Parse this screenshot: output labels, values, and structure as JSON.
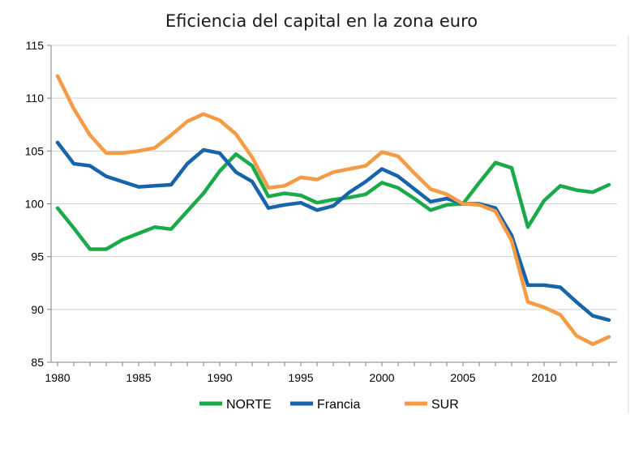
{
  "chart_data": {
    "type": "line",
    "title": "Eficiencia del capital en la zona euro",
    "xlabel": "",
    "ylabel": "",
    "xlim": [
      1980,
      2014
    ],
    "ylim": [
      85,
      115
    ],
    "x_ticks": [
      "1980",
      "1985",
      "1990",
      "1995",
      "2000",
      "2005",
      "2010"
    ],
    "y_ticks": [
      "85",
      "90",
      "95",
      "100",
      "105",
      "110",
      "115"
    ],
    "grid": "horizontal",
    "legend_position": "bottom",
    "x": [
      1980,
      1981,
      1982,
      1983,
      1984,
      1985,
      1986,
      1987,
      1988,
      1989,
      1990,
      1991,
      1992,
      1993,
      1994,
      1995,
      1996,
      1997,
      1998,
      1999,
      2000,
      2001,
      2002,
      2003,
      2004,
      2005,
      2006,
      2007,
      2008,
      2009,
      2010,
      2011,
      2012,
      2013,
      2014
    ],
    "series": [
      {
        "name": "NORTE",
        "color": "#1aaa4a",
        "values": [
          99.6,
          97.7,
          95.7,
          95.7,
          96.6,
          97.2,
          97.8,
          97.6,
          99.3,
          101.0,
          103.1,
          104.7,
          103.6,
          100.7,
          101.0,
          100.8,
          100.1,
          100.4,
          100.6,
          100.9,
          102.0,
          101.5,
          100.5,
          99.4,
          99.9,
          100.0,
          102.0,
          103.9,
          103.4,
          97.8,
          100.3,
          101.7,
          101.3,
          101.1,
          101.8
        ]
      },
      {
        "name": "Francia",
        "color": "#1764ab",
        "values": [
          105.8,
          103.8,
          103.6,
          102.6,
          102.1,
          101.6,
          101.7,
          101.8,
          103.8,
          105.1,
          104.8,
          103.0,
          102.1,
          99.6,
          99.9,
          100.1,
          99.4,
          99.8,
          101.1,
          102.1,
          103.3,
          102.6,
          101.4,
          100.2,
          100.5,
          100.0,
          100.0,
          99.6,
          97.0,
          92.3,
          92.3,
          92.1,
          90.7,
          89.4,
          89.0
        ]
      },
      {
        "name": "SUR",
        "color": "#f59a45",
        "values": [
          112.1,
          109.0,
          106.5,
          104.8,
          104.8,
          105.0,
          105.3,
          106.5,
          107.8,
          108.5,
          107.9,
          106.6,
          104.4,
          101.5,
          101.7,
          102.5,
          102.3,
          103.0,
          103.3,
          103.6,
          104.9,
          104.5,
          102.9,
          101.4,
          100.9,
          100.0,
          99.9,
          99.3,
          96.5,
          90.7,
          90.2,
          89.5,
          87.5,
          86.7,
          87.4
        ]
      }
    ]
  }
}
